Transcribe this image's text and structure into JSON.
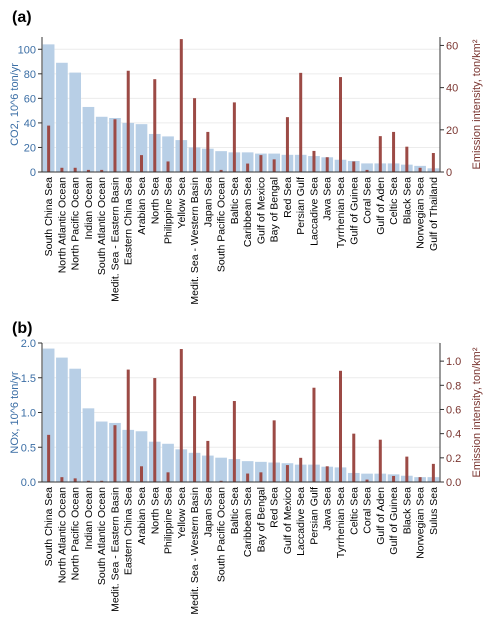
{
  "colors": {
    "bar_left": "#b8cfe6",
    "bar_right": "#9c4a45",
    "axis_left": "#3b6ea5",
    "axis_right": "#7a3530"
  },
  "chart_data": [
    {
      "type": "bar",
      "panel_label": "(a)",
      "ylabel_left": "CO2, 10^6 ton/yr",
      "ylabel_right": "Emission intensity, ton/km²",
      "ylim_left": [
        0,
        110
      ],
      "ylim_right": [
        0,
        64
      ],
      "yticks_left": [
        0,
        20,
        40,
        60,
        80,
        100
      ],
      "yticks_right": [
        0,
        20,
        40,
        60
      ],
      "grid": true,
      "categories": [
        "South China Sea",
        "North Atlantic Ocean",
        "North Pacific Ocean",
        "Indian Ocean",
        "South Atlantic Ocean",
        "Medit. Sea - Eastern Basin",
        "Eastern China Sea",
        "Arabian Sea",
        "North Sea",
        "Philippine Sea",
        "Yellow Sea",
        "Medit. Sea - Western Basin",
        "Japan Sea",
        "South Pacific Ocean",
        "Baltic Sea",
        "Caribbean Sea",
        "Gulf of Mexico",
        "Bay of Bengal",
        "Red Sea",
        "Persian Gulf",
        "Laccadive Sea",
        "Java Sea",
        "Tyrrhenian Sea",
        "Gulf of Guinea",
        "Coral Sea",
        "Gulf of Aden",
        "Celtic Sea",
        "Black Sea",
        "Norwegian Sea",
        "Gulf of Thailand"
      ],
      "series": [
        {
          "values": [
            104,
            89,
            81,
            53,
            45,
            44,
            40,
            39,
            31,
            29,
            26,
            20,
            19,
            17,
            16,
            16,
            15,
            15,
            14,
            14,
            13,
            12,
            10,
            9,
            7,
            7,
            7,
            6,
            5,
            3
          ]
        },
        {
          "values": [
            22,
            2,
            2,
            1,
            1,
            25,
            48,
            8,
            44,
            5,
            63,
            35,
            19,
            1,
            33,
            4,
            8,
            6,
            26,
            47,
            10,
            7,
            45,
            5,
            1,
            17,
            19,
            12,
            2,
            9
          ]
        }
      ]
    },
    {
      "type": "bar",
      "panel_label": "(b)",
      "ylabel_left": "NOx, 10^6 ton/yr",
      "ylabel_right": "Emission intensity, ton/km²",
      "ylim_left": [
        0,
        2.0
      ],
      "ylim_right": [
        0,
        1.15
      ],
      "yticks_left": [
        0.0,
        0.5,
        1.0,
        1.5,
        2.0
      ],
      "yticks_right": [
        0.0,
        0.2,
        0.4,
        0.6,
        0.8,
        1.0
      ],
      "grid": true,
      "categories": [
        "South China Sea",
        "North Atlantic Ocean",
        "North Pacific Ocean",
        "Indian Ocean",
        "South Atlantic Ocean",
        "Medit. Sea - Eastern Basin",
        "Eastern China Sea",
        "Arabian Sea",
        "North Sea",
        "Philippine Sea",
        "Yellow Sea",
        "Medit. Sea - Western Basin",
        "Japan Sea",
        "South Pacific Ocean",
        "Baltic Sea",
        "Caribbean Sea",
        "Bay of Bengal",
        "Red Sea",
        "Gulf of Mexico",
        "Laccadive Sea",
        "Persian Gulf",
        "Java Sea",
        "Tyrrhenian Sea",
        "Celtic Sea",
        "Coral Sea",
        "Gulf of Aden",
        "Gulf of Guinea",
        "Black Sea",
        "Norwegian Sea",
        "Sulus Sea"
      ],
      "series": [
        {
          "values": [
            1.92,
            1.79,
            1.63,
            1.06,
            0.87,
            0.85,
            0.75,
            0.73,
            0.58,
            0.55,
            0.47,
            0.42,
            0.38,
            0.35,
            0.33,
            0.3,
            0.29,
            0.28,
            0.27,
            0.25,
            0.25,
            0.22,
            0.21,
            0.13,
            0.12,
            0.12,
            0.11,
            0.09,
            0.07,
            0.07
          ]
        },
        {
          "values": [
            0.39,
            0.04,
            0.03,
            0.01,
            0.01,
            0.47,
            0.93,
            0.13,
            0.86,
            0.08,
            1.1,
            0.71,
            0.34,
            0.01,
            0.67,
            0.07,
            0.08,
            0.51,
            0.14,
            0.2,
            0.78,
            0.13,
            0.92,
            0.4,
            0.02,
            0.35,
            0.05,
            0.21,
            0.04,
            0.15
          ]
        }
      ]
    }
  ]
}
